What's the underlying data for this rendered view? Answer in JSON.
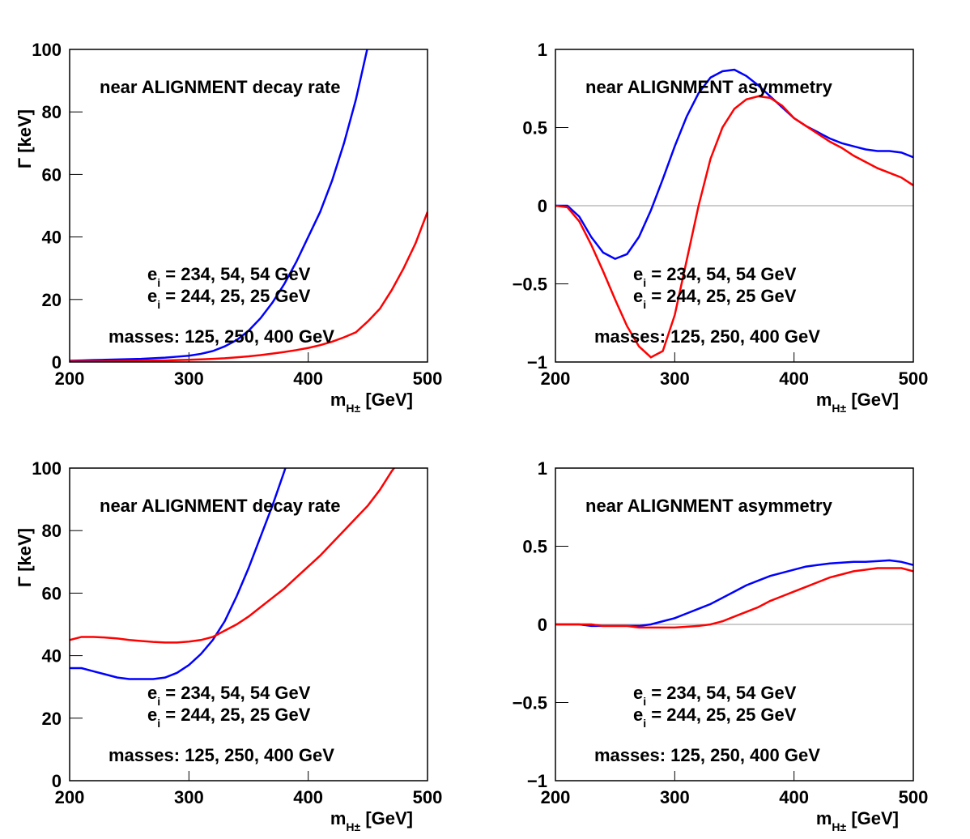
{
  "chart_data": [
    {
      "type": "line",
      "title": "near ALIGNMENT decay rate",
      "ylabel": "Γ [keV]",
      "xlabel": {
        "base": "m",
        "sub": "H±",
        "rest": " [GeV]"
      },
      "x": [
        200,
        210,
        220,
        230,
        240,
        250,
        260,
        270,
        280,
        290,
        300,
        310,
        320,
        330,
        340,
        350,
        360,
        370,
        380,
        390,
        400,
        410,
        420,
        430,
        440,
        450,
        460,
        470,
        480,
        490,
        500
      ],
      "xlim": [
        200,
        500
      ],
      "xticks": [
        200,
        300,
        400,
        500
      ],
      "ylim": [
        0,
        100
      ],
      "yticks": [
        0,
        20,
        40,
        60,
        80,
        100
      ],
      "series": [
        {
          "color": "#0000ff",
          "values": [
            0.4,
            0.5,
            0.6,
            0.7,
            0.8,
            0.9,
            1.0,
            1.2,
            1.4,
            1.7,
            2.0,
            2.6,
            3.5,
            5,
            7,
            10,
            14,
            19,
            25,
            32,
            40,
            48,
            58,
            70,
            84,
            101,
            null,
            null,
            null,
            null,
            null
          ]
        },
        {
          "color": "#ff0000",
          "values": [
            0.2,
            0.2,
            0.2,
            0.25,
            0.3,
            0.35,
            0.4,
            0.45,
            0.5,
            0.6,
            0.7,
            0.85,
            1.0,
            1.2,
            1.5,
            1.8,
            2.2,
            2.7,
            3.2,
            3.8,
            4.5,
            5.4,
            6.5,
            7.9,
            9.5,
            13,
            17,
            23,
            30,
            38,
            48
          ]
        }
      ],
      "labels": [
        {
          "base": "e",
          "sub": "i",
          "rest": " = 234, 54, 54 GeV",
          "color": "#0000ff"
        },
        {
          "base": "e",
          "sub": "i",
          "rest": " = 244, 25, 25 GeV",
          "color": "#ff0000"
        }
      ],
      "note": "masses: 125, 250, 400 GeV"
    },
    {
      "type": "line",
      "title": "near ALIGNMENT asymmetry",
      "xlabel": {
        "base": "m",
        "sub": "H±",
        "rest": " [GeV]"
      },
      "x": [
        200,
        210,
        220,
        230,
        240,
        250,
        260,
        270,
        280,
        290,
        300,
        310,
        320,
        330,
        340,
        350,
        360,
        370,
        380,
        390,
        400,
        410,
        420,
        430,
        440,
        450,
        460,
        470,
        480,
        490,
        500
      ],
      "xlim": [
        200,
        500
      ],
      "xticks": [
        200,
        300,
        400,
        500
      ],
      "ylim": [
        -1,
        1
      ],
      "yticks": [
        {
          "value": -1,
          "label": "−1"
        },
        {
          "value": -0.5,
          "label": "−0.5"
        },
        0,
        0.5,
        1
      ],
      "hline": 0,
      "series": [
        {
          "color": "#0000ff",
          "values": [
            0,
            0,
            -0.07,
            -0.2,
            -0.3,
            -0.34,
            -0.31,
            -0.2,
            -0.03,
            0.17,
            0.38,
            0.57,
            0.72,
            0.82,
            0.86,
            0.87,
            0.83,
            0.77,
            0.7,
            0.63,
            0.56,
            0.51,
            0.47,
            0.43,
            0.4,
            0.38,
            0.36,
            0.35,
            0.35,
            0.34,
            0.31
          ]
        },
        {
          "color": "#ff0000",
          "values": [
            0,
            -0.01,
            -0.1,
            -0.25,
            -0.42,
            -0.6,
            -0.77,
            -0.9,
            -0.97,
            -0.93,
            -0.7,
            -0.35,
            0.0,
            0.3,
            0.5,
            0.62,
            0.68,
            0.7,
            0.69,
            0.64,
            0.56,
            0.51,
            0.46,
            0.41,
            0.37,
            0.32,
            0.28,
            0.24,
            0.21,
            0.18,
            0.13
          ]
        }
      ],
      "labels": [
        {
          "base": "e",
          "sub": "i",
          "rest": " = 234, 54, 54 GeV",
          "color": "#0000ff"
        },
        {
          "base": "e",
          "sub": "i",
          "rest": " = 244, 25, 25 GeV",
          "color": "#ff0000"
        }
      ],
      "note": "masses: 125, 250, 400 GeV"
    },
    {
      "type": "line",
      "title": "near ALIGNMENT decay rate",
      "ylabel": "Γ [keV]",
      "xlabel": {
        "base": "m",
        "sub": "H±",
        "rest": " [GeV]"
      },
      "x": [
        200,
        210,
        220,
        230,
        240,
        250,
        260,
        270,
        280,
        290,
        300,
        310,
        320,
        330,
        340,
        350,
        360,
        370,
        380,
        390,
        400,
        410,
        420,
        430,
        440,
        450,
        460,
        470,
        480,
        490,
        500
      ],
      "xlim": [
        200,
        500
      ],
      "xticks": [
        200,
        300,
        400,
        500
      ],
      "ylim": [
        0,
        100
      ],
      "yticks": [
        0,
        20,
        40,
        60,
        80,
        100
      ],
      "series": [
        {
          "color": "#0000ff",
          "values": [
            36,
            36,
            35,
            34,
            33,
            32.5,
            32.5,
            32.5,
            33,
            34.5,
            37,
            40.5,
            45,
            51,
            59,
            68,
            78,
            88,
            99,
            111,
            null,
            null,
            null,
            null,
            null,
            null,
            null,
            null,
            null,
            null,
            null
          ]
        },
        {
          "color": "#ff0000",
          "values": [
            45,
            46,
            46,
            45.8,
            45.5,
            45,
            44.7,
            44.4,
            44.2,
            44.2,
            44.5,
            45,
            46,
            48,
            50,
            52.5,
            55.5,
            58.5,
            61.5,
            65,
            68.5,
            72,
            76,
            80,
            84,
            88,
            93,
            99,
            104,
            null,
            null
          ]
        }
      ],
      "labels": [
        {
          "base": "e",
          "sub": "i",
          "rest": " = 234, 54, 54 GeV",
          "color": "#0000ff"
        },
        {
          "base": "e",
          "sub": "i",
          "rest": " = 244, 25, 25 GeV",
          "color": "#ff0000"
        }
      ],
      "note": "masses: 125, 250, 400 GeV"
    },
    {
      "type": "line",
      "title": "near ALIGNMENT asymmetry",
      "xlabel": {
        "base": "m",
        "sub": "H±",
        "rest": " [GeV]"
      },
      "x": [
        200,
        210,
        220,
        230,
        240,
        250,
        260,
        270,
        280,
        290,
        300,
        310,
        320,
        330,
        340,
        350,
        360,
        370,
        380,
        390,
        400,
        410,
        420,
        430,
        440,
        450,
        460,
        470,
        480,
        490,
        500
      ],
      "xlim": [
        200,
        500
      ],
      "xticks": [
        200,
        300,
        400,
        500
      ],
      "ylim": [
        -1,
        1
      ],
      "yticks": [
        {
          "value": -1,
          "label": "−1"
        },
        {
          "value": -0.5,
          "label": "−0.5"
        },
        0,
        0.5,
        1
      ],
      "hline": 0,
      "series": [
        {
          "color": "#0000ff",
          "values": [
            0,
            0,
            0,
            -0.01,
            -0.01,
            -0.01,
            -0.01,
            -0.01,
            0,
            0.02,
            0.04,
            0.07,
            0.1,
            0.13,
            0.17,
            0.21,
            0.25,
            0.28,
            0.31,
            0.33,
            0.35,
            0.37,
            0.38,
            0.39,
            0.395,
            0.4,
            0.4,
            0.405,
            0.41,
            0.4,
            0.38
          ]
        },
        {
          "color": "#ff0000",
          "values": [
            0,
            0,
            0,
            0,
            -0.01,
            -0.01,
            -0.01,
            -0.02,
            -0.02,
            -0.02,
            -0.02,
            -0.015,
            -0.01,
            0,
            0.02,
            0.05,
            0.08,
            0.11,
            0.15,
            0.18,
            0.21,
            0.24,
            0.27,
            0.3,
            0.32,
            0.34,
            0.35,
            0.36,
            0.36,
            0.36,
            0.34
          ]
        }
      ],
      "labels": [
        {
          "base": "e",
          "sub": "i",
          "rest": " = 234, 54, 54 GeV",
          "color": "#0000ff"
        },
        {
          "base": "e",
          "sub": "i",
          "rest": " = 244, 25, 25 GeV",
          "color": "#ff0000"
        }
      ],
      "note": "masses: 125, 250, 400 GeV"
    }
  ]
}
